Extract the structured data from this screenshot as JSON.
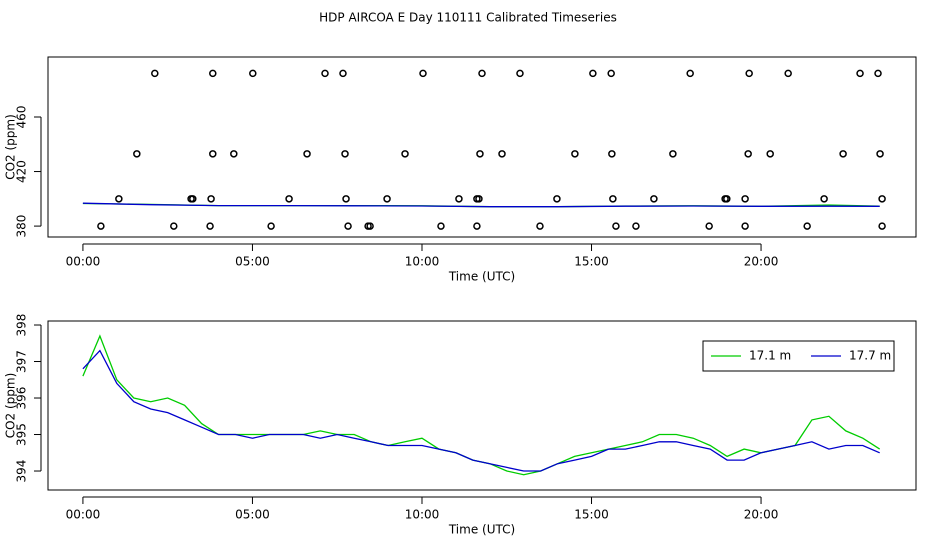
{
  "title": "HDP AIRCOA E  Day 110111  Calibrated Timeseries",
  "chart_data": [
    {
      "type": "line",
      "xlabel": "Time (UTC)",
      "ylabel": "CO2 (ppm)",
      "xlim": [
        -1.03,
        24.57
      ],
      "ylim": [
        372,
        504
      ],
      "xticks": [
        {
          "value": 0,
          "label": "00:00"
        },
        {
          "value": 5,
          "label": "05:00"
        },
        {
          "value": 10,
          "label": "10:00"
        },
        {
          "value": 15,
          "label": "15:00"
        },
        {
          "value": 20,
          "label": "20:00"
        }
      ],
      "yticks": [
        380,
        420,
        460
      ],
      "x": [
        0,
        2,
        4,
        6,
        8,
        10,
        12,
        14,
        16,
        18,
        20,
        22,
        23.5
      ],
      "series": [
        {
          "color": "#00cc00",
          "values": [
            396.6,
            395.9,
            395.0,
            395.0,
            395.0,
            394.9,
            394.2,
            394.2,
            394.7,
            394.9,
            394.5,
            395.5,
            394.6
          ]
        },
        {
          "color": "#0000cc",
          "values": [
            396.8,
            395.7,
            395.0,
            395.0,
            394.9,
            394.7,
            394.2,
            394.2,
            394.6,
            394.7,
            394.5,
            394.6,
            394.5
          ]
        }
      ],
      "points": {
        "color": "#000000",
        "x": [
          2.12,
          3.83,
          5.01,
          7.14,
          7.67,
          10.03,
          11.77,
          12.89,
          15.04,
          15.58,
          17.91,
          19.65,
          20.8,
          22.92,
          23.45,
          1.59,
          3.83,
          4.45,
          6.61,
          7.73,
          9.5,
          11.71,
          12.36,
          14.51,
          15.6,
          17.4,
          19.62,
          20.27,
          22.42,
          23.51,
          1.06,
          3.19,
          3.24,
          3.78,
          6.08,
          7.76,
          8.97,
          11.09,
          11.62,
          11.68,
          13.98,
          15.63,
          16.84,
          18.94,
          18.99,
          19.53,
          21.86,
          23.57,
          0.53,
          2.68,
          3.75,
          5.55,
          7.82,
          8.41,
          8.47,
          10.56,
          11.62,
          13.48,
          15.72,
          16.31,
          18.47,
          19.53,
          21.36,
          23.57
        ],
        "values": [
          492,
          492,
          492,
          492,
          492,
          492,
          492,
          492,
          492,
          492,
          492,
          492,
          492,
          492,
          492,
          433,
          433,
          433,
          433,
          433,
          433,
          433,
          433,
          433,
          433,
          433,
          433,
          433,
          433,
          433,
          400,
          400,
          400,
          400,
          400,
          400,
          400,
          400,
          400,
          400,
          400,
          400,
          400,
          400,
          400,
          400,
          400,
          400,
          380,
          380,
          380,
          380,
          380,
          380,
          380,
          380,
          380,
          380,
          380,
          380,
          380,
          380,
          380,
          380
        ]
      }
    },
    {
      "type": "line",
      "xlabel": "Time (UTC)",
      "ylabel": "CO2 (ppm)",
      "legend": "top-right",
      "xlim": [
        -1.03,
        24.57
      ],
      "ylim": [
        393.48,
        398.11
      ],
      "xticks": [
        {
          "value": 0,
          "label": "00:00"
        },
        {
          "value": 5,
          "label": "05:00"
        },
        {
          "value": 10,
          "label": "10:00"
        },
        {
          "value": 15,
          "label": "15:00"
        },
        {
          "value": 20,
          "label": "20:00"
        }
      ],
      "yticks": [
        394,
        395,
        396,
        397,
        398
      ],
      "x": [
        0,
        0.5,
        1,
        1.5,
        2,
        2.5,
        3,
        3.5,
        4,
        4.5,
        5,
        5.5,
        6,
        6.5,
        7,
        7.5,
        8,
        8.5,
        9,
        9.5,
        10,
        10.5,
        11,
        11.5,
        12,
        12.5,
        13,
        13.5,
        14,
        14.5,
        15,
        15.5,
        16,
        16.5,
        17,
        17.5,
        18,
        18.5,
        19,
        19.5,
        20,
        20.5,
        21,
        21.5,
        22,
        22.5,
        23,
        23.5
      ],
      "series": [
        {
          "name": "17.1 m",
          "color": "#00cc00",
          "values": [
            396.6,
            397.7,
            396.5,
            396.0,
            395.9,
            396.0,
            395.8,
            395.3,
            395.0,
            395.0,
            395.0,
            395.0,
            395.0,
            395.0,
            395.1,
            395.0,
            395.0,
            394.8,
            394.7,
            394.8,
            394.9,
            394.6,
            394.5,
            394.3,
            394.2,
            394.0,
            393.9,
            394.0,
            394.2,
            394.4,
            394.5,
            394.6,
            394.7,
            394.8,
            395.0,
            395.0,
            394.9,
            394.7,
            394.4,
            394.6,
            394.5,
            394.6,
            394.7,
            395.4,
            395.5,
            395.1,
            394.9,
            394.6
          ]
        },
        {
          "name": "17.7 m",
          "color": "#0000cc",
          "values": [
            396.8,
            397.3,
            396.4,
            395.9,
            395.7,
            395.6,
            395.4,
            395.2,
            395.0,
            395.0,
            394.9,
            395.0,
            395.0,
            395.0,
            394.9,
            395.0,
            394.9,
            394.8,
            394.7,
            394.7,
            394.7,
            394.6,
            394.5,
            394.3,
            394.2,
            394.1,
            394.0,
            394.0,
            394.2,
            394.3,
            394.4,
            394.6,
            394.6,
            394.7,
            394.8,
            394.8,
            394.7,
            394.6,
            394.3,
            394.3,
            394.5,
            394.6,
            394.7,
            394.8,
            394.6,
            394.7,
            394.7,
            394.5
          ]
        }
      ]
    }
  ]
}
